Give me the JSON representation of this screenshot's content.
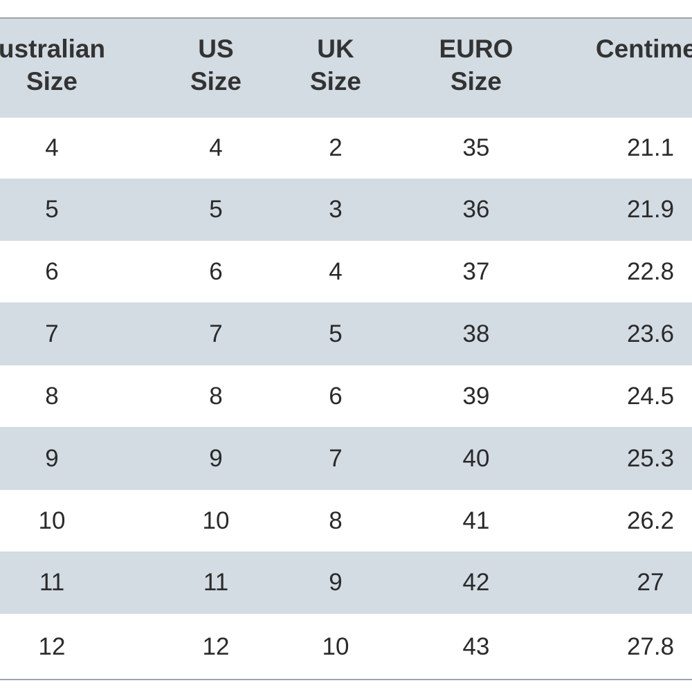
{
  "table": {
    "header": [
      [
        "ustralian",
        "Size"
      ],
      [
        "US",
        "Size"
      ],
      [
        "UK",
        "Size"
      ],
      [
        "EURO",
        "Size"
      ],
      [
        "Centimet"
      ]
    ],
    "rows": [
      [
        4,
        4,
        2,
        35,
        21.1
      ],
      [
        5,
        5,
        3,
        36,
        21.9
      ],
      [
        6,
        6,
        4,
        37,
        22.8
      ],
      [
        7,
        7,
        5,
        38,
        23.6
      ],
      [
        8,
        8,
        6,
        39,
        24.5
      ],
      [
        9,
        9,
        7,
        40,
        25.3
      ],
      [
        10,
        10,
        8,
        41,
        26.2
      ],
      [
        11,
        11,
        9,
        42,
        27
      ],
      [
        12,
        12,
        10,
        43,
        27.8
      ]
    ]
  }
}
